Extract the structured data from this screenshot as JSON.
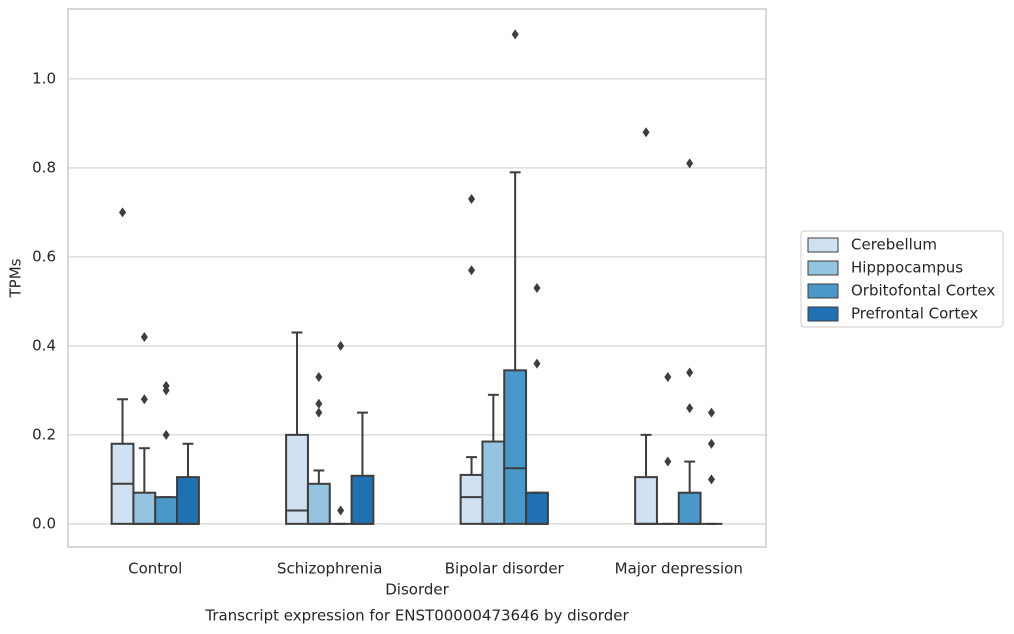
{
  "chart_data": {
    "type": "box",
    "title": "Transcript expression for ENST00000473646 by disorder",
    "xlabel": "Disorder",
    "ylabel": "TPMs",
    "categories": [
      "Control",
      "Schizophrenia",
      "Bipolar disorder",
      "Major depression"
    ],
    "ylim": [
      -0.052,
      1.157
    ],
    "yticks": [
      {
        "value": 0,
        "label": "0.0"
      },
      0.2,
      0.4,
      0.6,
      0.8,
      {
        "value": 1,
        "label": "1.0"
      }
    ],
    "grid": true,
    "legend": "right",
    "series": [
      {
        "name": "Cerebellum",
        "color": "#d0e1f2",
        "low": [
          0,
          0,
          0,
          0
        ],
        "q1": [
          0,
          0,
          0,
          0
        ],
        "median": [
          0.09,
          0.03,
          0.06,
          0
        ],
        "q3": [
          0.18,
          0.2,
          0.11,
          0.105
        ],
        "high": [
          0.28,
          0.43,
          0.15,
          0.2
        ],
        "outliers": [
          [
            0.7
          ],
          [],
          [
            0.73,
            0.57
          ],
          [
            0.88
          ]
        ]
      },
      {
        "name": "Hipppocampus",
        "color": "#94c4df",
        "low": [
          0,
          0,
          0,
          0
        ],
        "q1": [
          0,
          0,
          0,
          0
        ],
        "median": [
          0,
          0,
          0,
          0
        ],
        "q3": [
          0.07,
          0.09,
          0.185,
          0
        ],
        "high": [
          0.17,
          0.12,
          0.29,
          0
        ],
        "outliers": [
          [
            0.42,
            0.28
          ],
          [
            0.33,
            0.27,
            0.25
          ],
          [],
          [
            0.33,
            0.14
          ]
        ]
      },
      {
        "name": "Orbitofontal Cortex",
        "color": "#4a98c9",
        "low": [
          0,
          0,
          0,
          0
        ],
        "q1": [
          0,
          0,
          0,
          0
        ],
        "median": [
          0,
          0,
          0.125,
          0
        ],
        "q3": [
          0.06,
          0,
          0.345,
          0.07
        ],
        "high": [
          0.06,
          0,
          0.79,
          0.14
        ],
        "outliers": [
          [
            0.31,
            0.3,
            0.2
          ],
          [
            0.4,
            0.03
          ],
          [
            1.1
          ],
          [
            0.81,
            0.34,
            0.26
          ]
        ]
      },
      {
        "name": "Prefrontal Cortex",
        "color": "#2070b4",
        "low": [
          0,
          0,
          0,
          0
        ],
        "q1": [
          0,
          0,
          0,
          0
        ],
        "median": [
          0,
          0,
          0,
          0
        ],
        "q3": [
          0.105,
          0.108,
          0.07,
          0
        ],
        "high": [
          0.18,
          0.25,
          0.07,
          0
        ],
        "outliers": [
          [],
          [],
          [
            0.53,
            0.36
          ],
          [
            0.25,
            0.18,
            0.1
          ]
        ]
      }
    ]
  }
}
